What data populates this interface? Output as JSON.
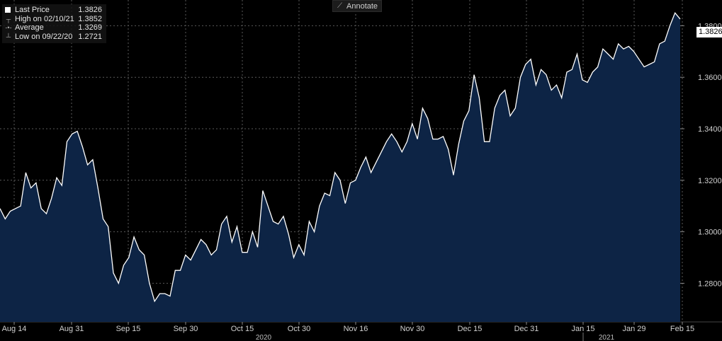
{
  "legend": {
    "items": [
      {
        "symbol": "square",
        "label": "Last Price",
        "value": "1.3826"
      },
      {
        "symbol": "high",
        "label": "High on 02/10/21",
        "value": "1.3852"
      },
      {
        "symbol": "avg",
        "label": "Average",
        "value": "1.3269"
      },
      {
        "symbol": "low",
        "label": "Low on 09/22/20",
        "value": "1.2721"
      }
    ]
  },
  "toolbar": {
    "annotate_label": "Annotate"
  },
  "last_price_tag": "1.3826",
  "colors": {
    "line": "#ffffff",
    "fill": "#0d2445",
    "grid": "#5a5a5a",
    "background": "#000000"
  },
  "chart_data": {
    "type": "area",
    "title": "",
    "xlabel": "",
    "ylabel": "",
    "ylim": [
      1.265,
      1.39
    ],
    "y_ticks": [
      1.28,
      1.3,
      1.32,
      1.34,
      1.36,
      1.38
    ],
    "y_tick_labels": [
      "1.2800",
      "1.3000",
      "1.3200",
      "1.3400",
      "1.3600",
      "1.3800"
    ],
    "x_tick_labels": [
      "Aug 14",
      "Aug 31",
      "Sep 15",
      "Sep 30",
      "Oct 15",
      "Oct 30",
      "Nov 16",
      "Nov 30",
      "Dec 15",
      "Dec 31",
      "Jan 15",
      "Jan 29",
      "Feb 15"
    ],
    "year_labels": [
      "2020",
      "2021"
    ],
    "grid": true,
    "legend_position": "top-left",
    "series": [
      {
        "values": [
          1.309,
          1.305,
          1.308,
          1.309,
          1.31,
          1.323,
          1.317,
          1.319,
          1.309,
          1.307,
          1.313,
          1.321,
          1.318,
          1.335,
          1.338,
          1.339,
          1.333,
          1.326,
          1.328,
          1.317,
          1.305,
          1.302,
          1.284,
          1.28,
          1.287,
          1.29,
          1.298,
          1.293,
          1.291,
          1.28,
          1.273,
          1.276,
          1.276,
          1.275,
          1.285,
          1.285,
          1.291,
          1.289,
          1.293,
          1.297,
          1.295,
          1.291,
          1.293,
          1.303,
          1.306,
          1.296,
          1.302,
          1.292,
          1.292,
          1.3,
          1.294,
          1.316,
          1.31,
          1.304,
          1.303,
          1.306,
          1.299,
          1.29,
          1.295,
          1.291,
          1.304,
          1.3,
          1.31,
          1.315,
          1.314,
          1.323,
          1.32,
          1.311,
          1.319,
          1.32,
          1.325,
          1.329,
          1.323,
          1.327,
          1.331,
          1.335,
          1.338,
          1.335,
          1.331,
          1.335,
          1.342,
          1.336,
          1.348,
          1.344,
          1.336,
          1.336,
          1.337,
          1.332,
          1.322,
          1.334,
          1.343,
          1.347,
          1.361,
          1.352,
          1.335,
          1.335,
          1.348,
          1.353,
          1.355,
          1.345,
          1.348,
          1.36,
          1.365,
          1.367,
          1.357,
          1.363,
          1.361,
          1.355,
          1.357,
          1.352,
          1.362,
          1.363,
          1.369,
          1.359,
          1.358,
          1.362,
          1.364,
          1.371,
          1.369,
          1.367,
          1.373,
          1.371,
          1.372,
          1.37,
          1.367,
          1.364,
          1.365,
          1.366,
          1.373,
          1.374,
          1.38,
          1.385,
          1.3826
        ]
      }
    ]
  }
}
